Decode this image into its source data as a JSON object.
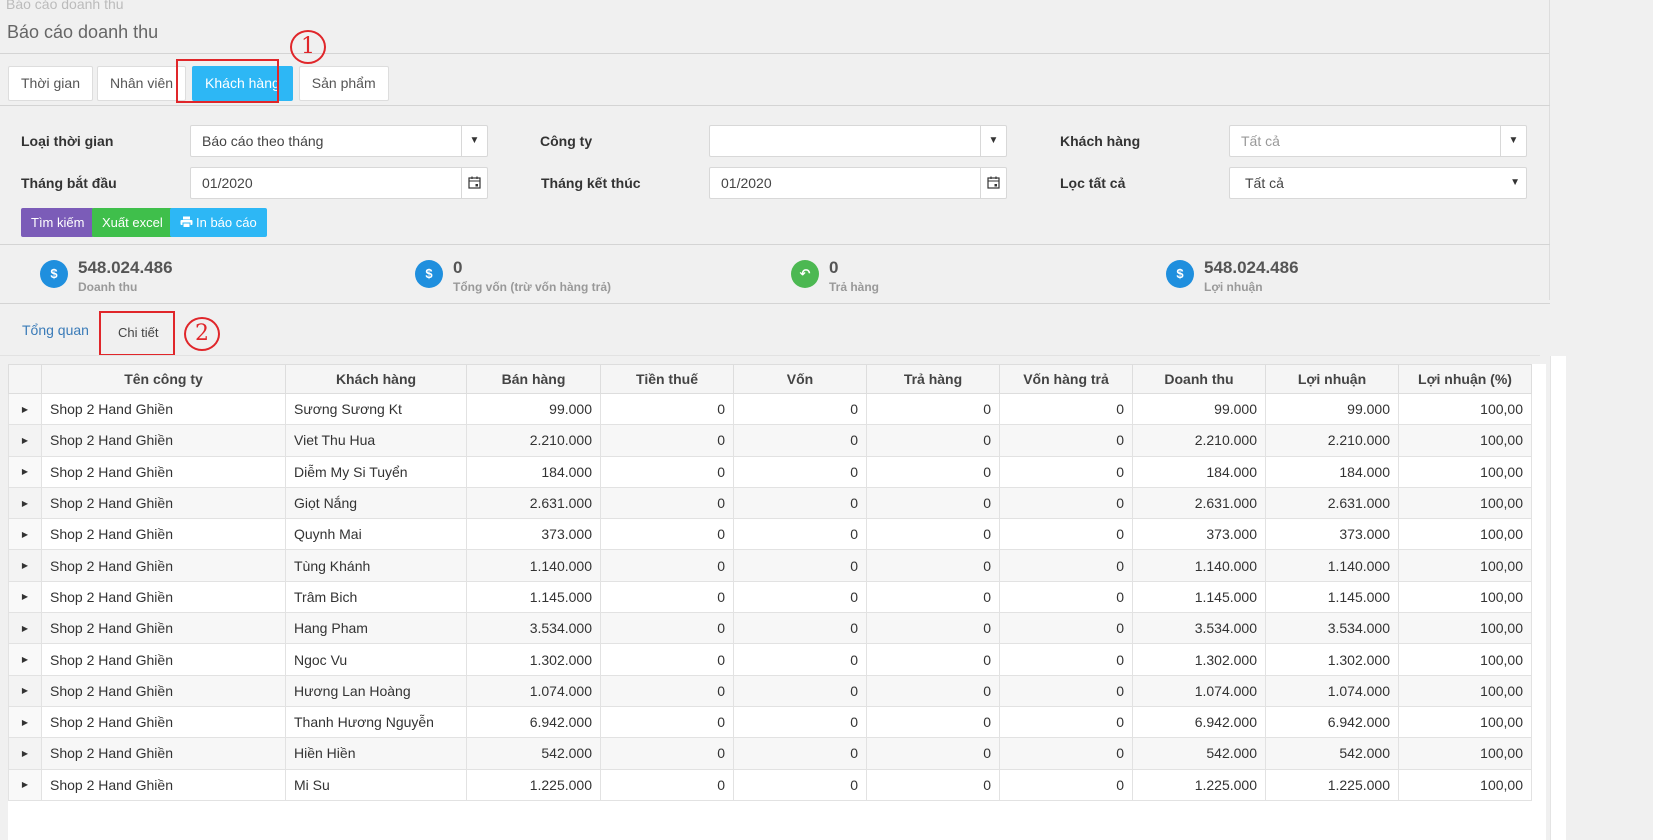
{
  "ghost_title": "Báo cáo doanh thu",
  "page_title": "Báo cáo doanh thu",
  "tabs": [
    {
      "label": "Thời gian"
    },
    {
      "label": "Nhân viên"
    },
    {
      "label": "Khách hàng"
    },
    {
      "label": "Sản phẩm"
    }
  ],
  "annotations": {
    "one": "1",
    "two": "2"
  },
  "filters": {
    "time_type_label": "Loại thời gian",
    "time_type_value": "Báo cáo theo tháng",
    "company_label": "Công ty",
    "company_value": "",
    "customer_label": "Khách hàng",
    "customer_placeholder": "Tất cả",
    "start_month_label": "Tháng bắt đầu",
    "start_month_value": "01/2020",
    "end_month_label": "Tháng kết thúc",
    "end_month_value": "01/2020",
    "filter_all_label": "Lọc tất cả",
    "filter_all_value": "Tất cả"
  },
  "actions": {
    "search": "Tìm kiếm",
    "export": "Xuất excel",
    "print": "In báo cáo"
  },
  "kpis": [
    {
      "value": "548.024.486",
      "caption": "Doanh thu",
      "icon": "$"
    },
    {
      "value": "0",
      "caption": "Tổng vốn (trừ vốn hàng trả)",
      "icon": "$"
    },
    {
      "value": "0",
      "caption": "Trả hàng",
      "icon": "↶"
    },
    {
      "value": "548.024.486",
      "caption": "Lợi nhuận",
      "icon": "$"
    }
  ],
  "subtabs": {
    "overview": "Tổng quan",
    "detail": "Chi tiết"
  },
  "colors": {
    "accent": "#2db7f5",
    "search": "#7b5cb8",
    "export": "#3fbf4b",
    "print": "#2db7f5",
    "kpi_blue": "#1f8fde",
    "kpi_green": "#4cb852",
    "mark": "#e0262a"
  },
  "table": {
    "columns": [
      "Tên công ty",
      "Khách hàng",
      "Bán hàng",
      "Tiền thuế",
      "Vốn",
      "Trả hàng",
      "Vốn hàng trả",
      "Doanh thu",
      "Lợi nhuận",
      "Lợi nhuận (%)"
    ],
    "rows": [
      [
        "Shop 2 Hand Ghiền",
        "Sương Sương Kt",
        "99.000",
        "0",
        "0",
        "0",
        "0",
        "99.000",
        "99.000",
        "100,00"
      ],
      [
        "Shop 2 Hand Ghiền",
        "Viet Thu Hua",
        "2.210.000",
        "0",
        "0",
        "0",
        "0",
        "2.210.000",
        "2.210.000",
        "100,00"
      ],
      [
        "Shop 2 Hand Ghiền",
        "Diễm My Si Tuyển",
        "184.000",
        "0",
        "0",
        "0",
        "0",
        "184.000",
        "184.000",
        "100,00"
      ],
      [
        "Shop 2 Hand Ghiền",
        "Giọt Nắng",
        "2.631.000",
        "0",
        "0",
        "0",
        "0",
        "2.631.000",
        "2.631.000",
        "100,00"
      ],
      [
        "Shop 2 Hand Ghiền",
        "Quynh Mai",
        "373.000",
        "0",
        "0",
        "0",
        "0",
        "373.000",
        "373.000",
        "100,00"
      ],
      [
        "Shop 2 Hand Ghiền",
        "Tùng Khánh",
        "1.140.000",
        "0",
        "0",
        "0",
        "0",
        "1.140.000",
        "1.140.000",
        "100,00"
      ],
      [
        "Shop 2 Hand Ghiền",
        "Trâm Bich",
        "1.145.000",
        "0",
        "0",
        "0",
        "0",
        "1.145.000",
        "1.145.000",
        "100,00"
      ],
      [
        "Shop 2 Hand Ghiền",
        "Hang Pham",
        "3.534.000",
        "0",
        "0",
        "0",
        "0",
        "3.534.000",
        "3.534.000",
        "100,00"
      ],
      [
        "Shop 2 Hand Ghiền",
        "Ngoc Vu",
        "1.302.000",
        "0",
        "0",
        "0",
        "0",
        "1.302.000",
        "1.302.000",
        "100,00"
      ],
      [
        "Shop 2 Hand Ghiền",
        "Hương Lan Hoàng",
        "1.074.000",
        "0",
        "0",
        "0",
        "0",
        "1.074.000",
        "1.074.000",
        "100,00"
      ],
      [
        "Shop 2 Hand Ghiền",
        "Thanh Hương Nguyễn",
        "6.942.000",
        "0",
        "0",
        "0",
        "0",
        "6.942.000",
        "6.942.000",
        "100,00"
      ],
      [
        "Shop 2 Hand Ghiền",
        "Hiền Hiền",
        "542.000",
        "0",
        "0",
        "0",
        "0",
        "542.000",
        "542.000",
        "100,00"
      ],
      [
        "Shop 2 Hand Ghiền",
        "Mi Su",
        "1.225.000",
        "0",
        "0",
        "0",
        "0",
        "1.225.000",
        "1.225.000",
        "100,00"
      ]
    ]
  }
}
